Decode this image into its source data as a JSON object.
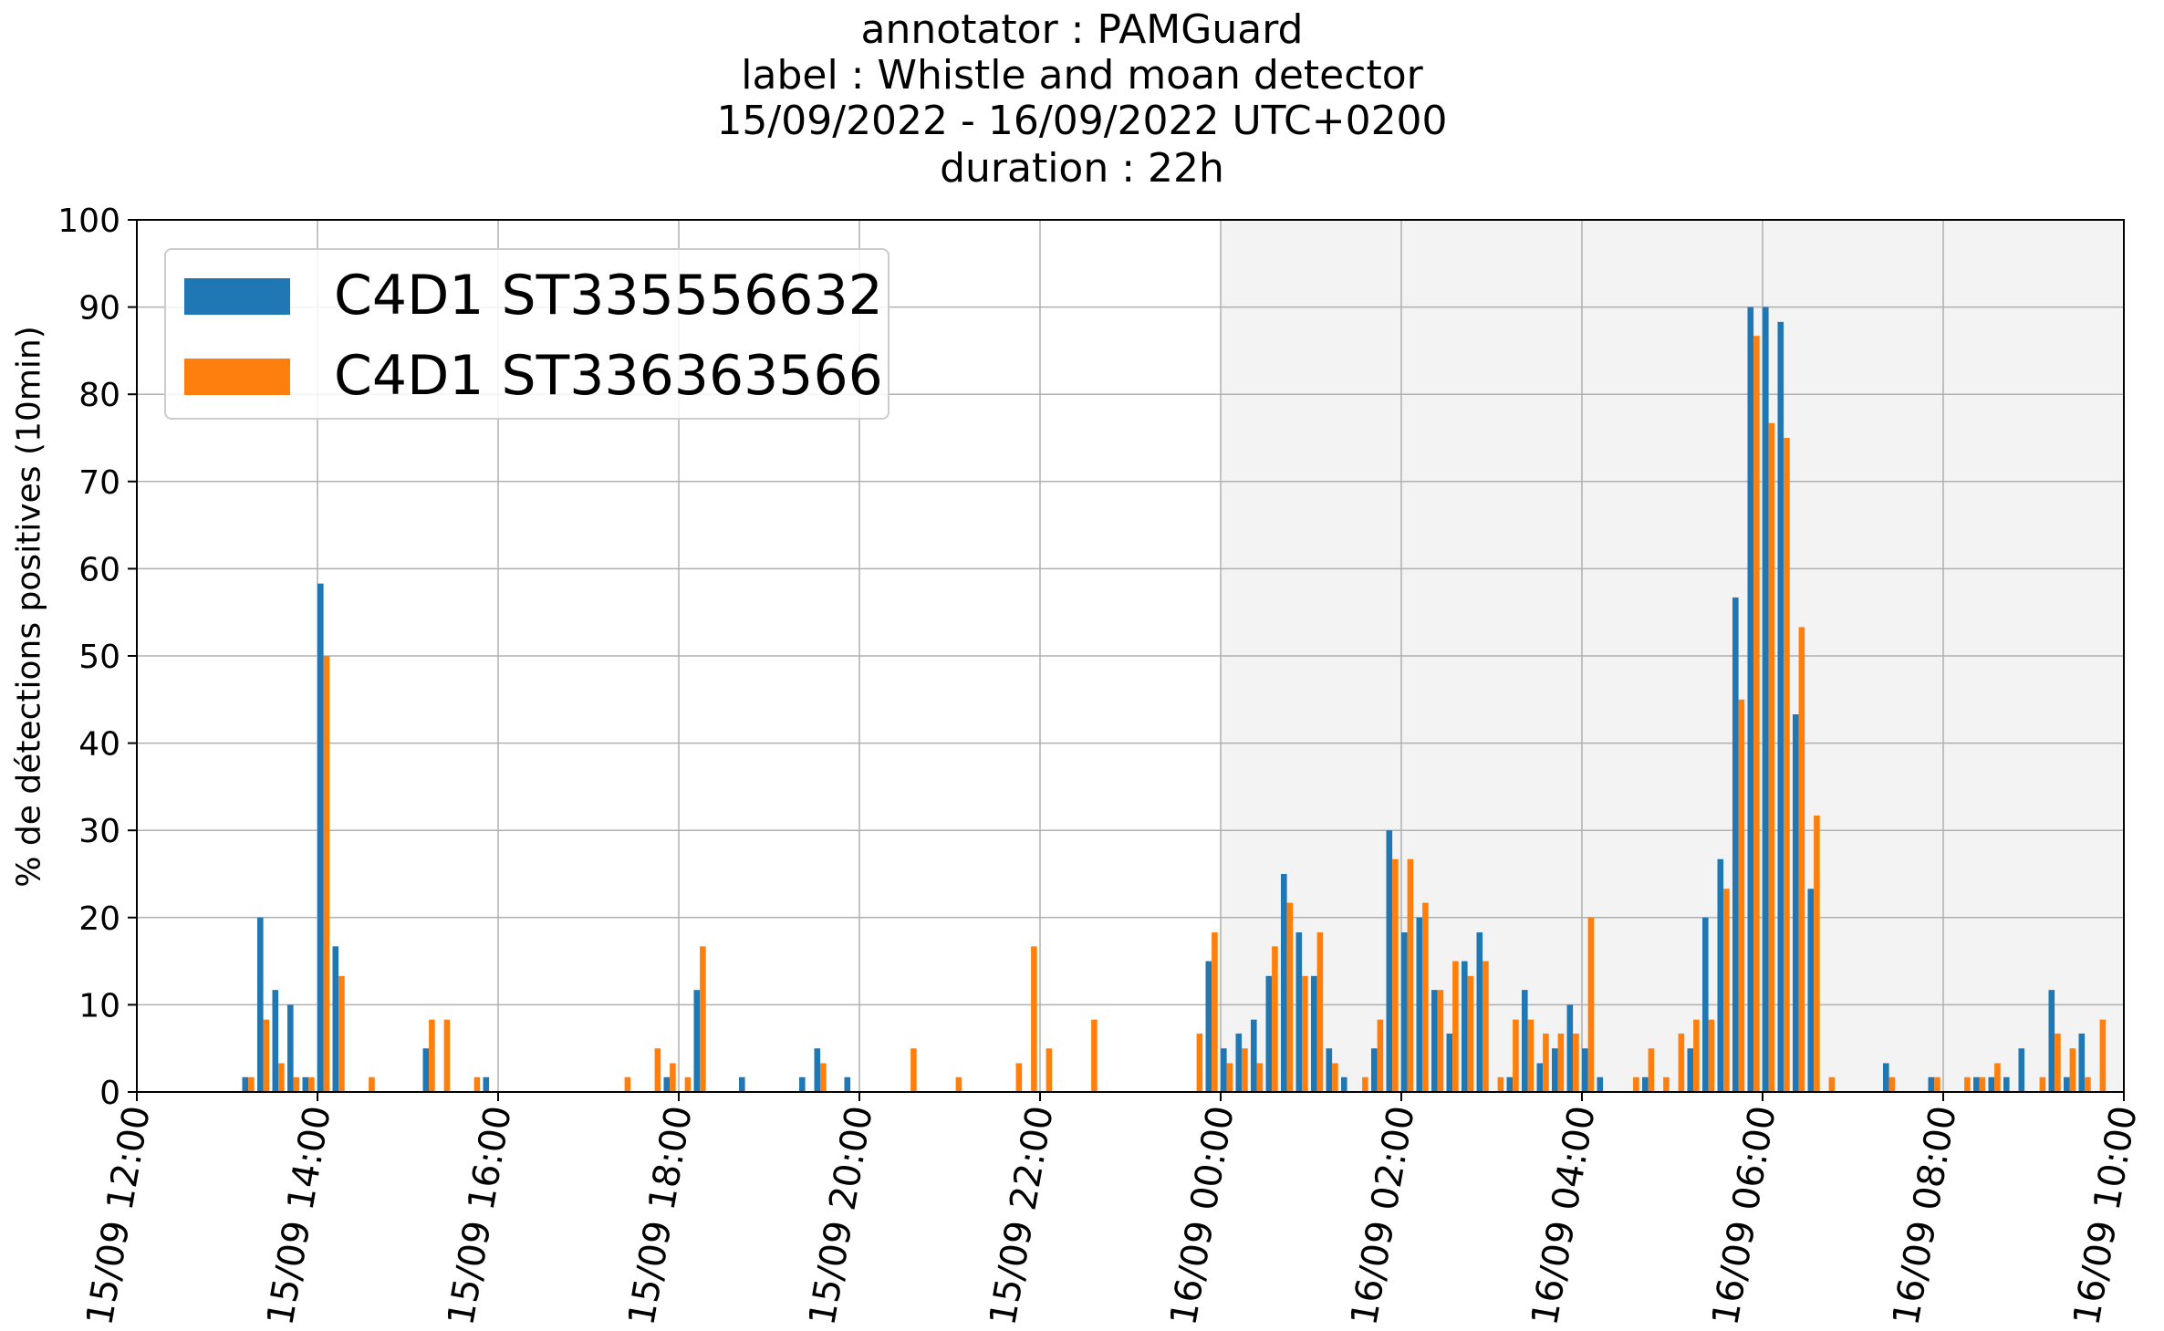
{
  "title_lines": [
    "annotator : PAMGuard",
    "label : Whistle and moan detector",
    "15/09/2022 - 16/09/2022 UTC+0200",
    "duration : 22h"
  ],
  "chart_data": {
    "type": "bar",
    "ylabel": "% de détections positives (10min)",
    "xlabel": "",
    "ylim": [
      0,
      100
    ],
    "yticks": [
      0,
      10,
      20,
      30,
      40,
      50,
      60,
      70,
      80,
      90,
      100
    ],
    "xlim": [
      "15/09 12:00",
      "16/09 10:00"
    ],
    "xticks": [
      "15/09 12:00",
      "15/09 14:00",
      "15/09 16:00",
      "15/09 18:00",
      "15/09 20:00",
      "15/09 22:00",
      "16/09 00:00",
      "16/09 02:00",
      "16/09 04:00",
      "16/09 06:00",
      "16/09 08:00",
      "16/09 10:00"
    ],
    "bin": "10min",
    "grid": true,
    "legend_position": "upper left",
    "night_shading": [
      "16/09 00:00",
      "16/09 10:00"
    ],
    "colors": {
      "series_1": "#1f77b4",
      "series_2": "#ff7f0e",
      "night": "#f3f3f3",
      "grid": "#b0b0b0"
    },
    "series": [
      {
        "name": "C4D1 ST335556632",
        "points": [
          [
            "15/09 13:10",
            1.7
          ],
          [
            "15/09 13:20",
            20
          ],
          [
            "15/09 13:30",
            11.7
          ],
          [
            "15/09 13:40",
            10
          ],
          [
            "15/09 13:50",
            1.7
          ],
          [
            "15/09 14:00",
            58.3
          ],
          [
            "15/09 14:10",
            16.7
          ],
          [
            "15/09 15:10",
            5
          ],
          [
            "15/09 15:50",
            1.7
          ],
          [
            "15/09 17:50",
            1.7
          ],
          [
            "15/09 18:10",
            11.7
          ],
          [
            "15/09 18:40",
            1.7
          ],
          [
            "15/09 19:20",
            1.7
          ],
          [
            "15/09 19:30",
            5
          ],
          [
            "15/09 19:50",
            1.7
          ],
          [
            "15/09 23:50",
            15
          ],
          [
            "16/09 00:00",
            5
          ],
          [
            "16/09 00:10",
            6.7
          ],
          [
            "16/09 00:20",
            8.3
          ],
          [
            "16/09 00:30",
            13.3
          ],
          [
            "16/09 00:40",
            25
          ],
          [
            "16/09 00:50",
            18.3
          ],
          [
            "16/09 01:00",
            13.3
          ],
          [
            "16/09 01:10",
            5
          ],
          [
            "16/09 01:20",
            1.7
          ],
          [
            "16/09 01:40",
            5
          ],
          [
            "16/09 01:50",
            30
          ],
          [
            "16/09 02:00",
            18.3
          ],
          [
            "16/09 02:10",
            20
          ],
          [
            "16/09 02:20",
            11.7
          ],
          [
            "16/09 02:30",
            6.7
          ],
          [
            "16/09 02:40",
            15
          ],
          [
            "16/09 02:50",
            18.3
          ],
          [
            "16/09 03:10",
            1.7
          ],
          [
            "16/09 03:20",
            11.7
          ],
          [
            "16/09 03:30",
            3.3
          ],
          [
            "16/09 03:40",
            5
          ],
          [
            "16/09 03:50",
            10
          ],
          [
            "16/09 04:00",
            5
          ],
          [
            "16/09 04:10",
            1.7
          ],
          [
            "16/09 04:40",
            1.7
          ],
          [
            "16/09 05:10",
            5
          ],
          [
            "16/09 05:20",
            20
          ],
          [
            "16/09 05:30",
            26.7
          ],
          [
            "16/09 05:40",
            56.7
          ],
          [
            "16/09 05:50",
            90
          ],
          [
            "16/09 06:00",
            90
          ],
          [
            "16/09 06:10",
            88.3
          ],
          [
            "16/09 06:20",
            43.3
          ],
          [
            "16/09 06:30",
            23.3
          ],
          [
            "16/09 07:20",
            3.3
          ],
          [
            "16/09 07:50",
            1.7
          ],
          [
            "16/09 08:20",
            1.7
          ],
          [
            "16/09 08:30",
            1.7
          ],
          [
            "16/09 08:40",
            1.7
          ],
          [
            "16/09 08:50",
            5
          ],
          [
            "16/09 09:10",
            11.7
          ],
          [
            "16/09 09:20",
            1.7
          ],
          [
            "16/09 09:30",
            6.7
          ]
        ]
      },
      {
        "name": "C4D1 ST336363566",
        "points": [
          [
            "15/09 13:10",
            1.7
          ],
          [
            "15/09 13:20",
            8.3
          ],
          [
            "15/09 13:30",
            3.3
          ],
          [
            "15/09 13:40",
            1.7
          ],
          [
            "15/09 13:50",
            1.7
          ],
          [
            "15/09 14:00",
            50
          ],
          [
            "15/09 14:10",
            13.3
          ],
          [
            "15/09 14:30",
            1.7
          ],
          [
            "15/09 15:10",
            8.3
          ],
          [
            "15/09 15:20",
            8.3
          ],
          [
            "15/09 15:40",
            1.7
          ],
          [
            "15/09 17:20",
            1.7
          ],
          [
            "15/09 17:40",
            5
          ],
          [
            "15/09 17:50",
            3.3
          ],
          [
            "15/09 18:00",
            1.7
          ],
          [
            "15/09 18:10",
            16.7
          ],
          [
            "15/09 19:30",
            3.3
          ],
          [
            "15/09 20:30",
            5
          ],
          [
            "15/09 21:00",
            1.7
          ],
          [
            "15/09 21:40",
            3.3
          ],
          [
            "15/09 21:50",
            16.7
          ],
          [
            "15/09 22:00",
            5
          ],
          [
            "15/09 22:30",
            8.3
          ],
          [
            "15/09 23:40",
            6.7
          ],
          [
            "15/09 23:50",
            18.3
          ],
          [
            "16/09 00:00",
            3.3
          ],
          [
            "16/09 00:10",
            5
          ],
          [
            "16/09 00:20",
            3.3
          ],
          [
            "16/09 00:30",
            16.7
          ],
          [
            "16/09 00:40",
            21.7
          ],
          [
            "16/09 00:50",
            13.3
          ],
          [
            "16/09 01:00",
            18.3
          ],
          [
            "16/09 01:10",
            3.3
          ],
          [
            "16/09 01:30",
            1.7
          ],
          [
            "16/09 01:40",
            8.3
          ],
          [
            "16/09 01:50",
            26.7
          ],
          [
            "16/09 02:00",
            26.7
          ],
          [
            "16/09 02:10",
            21.7
          ],
          [
            "16/09 02:20",
            11.7
          ],
          [
            "16/09 02:30",
            15
          ],
          [
            "16/09 02:40",
            13.3
          ],
          [
            "16/09 02:50",
            15
          ],
          [
            "16/09 03:00",
            1.7
          ],
          [
            "16/09 03:10",
            8.3
          ],
          [
            "16/09 03:20",
            8.3
          ],
          [
            "16/09 03:30",
            6.7
          ],
          [
            "16/09 03:40",
            6.7
          ],
          [
            "16/09 03:50",
            6.7
          ],
          [
            "16/09 04:00",
            20
          ],
          [
            "16/09 04:30",
            1.7
          ],
          [
            "16/09 04:40",
            5
          ],
          [
            "16/09 04:50",
            1.7
          ],
          [
            "16/09 05:00",
            6.7
          ],
          [
            "16/09 05:10",
            8.3
          ],
          [
            "16/09 05:20",
            8.3
          ],
          [
            "16/09 05:30",
            23.3
          ],
          [
            "16/09 05:40",
            45
          ],
          [
            "16/09 05:50",
            86.7
          ],
          [
            "16/09 06:00",
            76.7
          ],
          [
            "16/09 06:10",
            75
          ],
          [
            "16/09 06:20",
            53.3
          ],
          [
            "16/09 06:30",
            31.7
          ],
          [
            "16/09 06:40",
            1.7
          ],
          [
            "16/09 07:20",
            1.7
          ],
          [
            "16/09 07:50",
            1.7
          ],
          [
            "16/09 08:10",
            1.7
          ],
          [
            "16/09 08:20",
            1.7
          ],
          [
            "16/09 08:30",
            3.3
          ],
          [
            "16/09 09:00",
            1.7
          ],
          [
            "16/09 09:10",
            6.7
          ],
          [
            "16/09 09:20",
            5
          ],
          [
            "16/09 09:30",
            1.7
          ],
          [
            "16/09 09:40",
            8.3
          ]
        ]
      }
    ]
  }
}
